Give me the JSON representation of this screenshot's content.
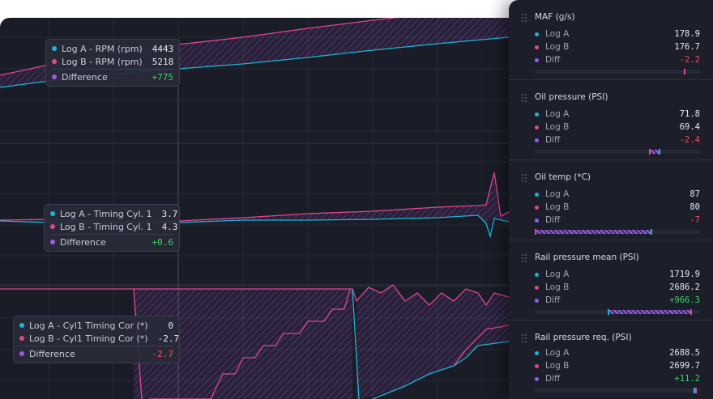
{
  "colors": {
    "log_a": "#1db4d6",
    "log_b": "#e2468e",
    "diff": "#9b5de5",
    "positive": "#3ecf6b",
    "negative": "#ef4e5b",
    "background": "#1a1c27",
    "panel": "#1c1e2a"
  },
  "tooltips": [
    {
      "rows": [
        {
          "label": "Log A - RPM (rpm)",
          "value": "4443"
        },
        {
          "label": "Log B - RPM (rpm)",
          "value": "5218"
        },
        {
          "label": "Difference",
          "value": "+775"
        }
      ]
    },
    {
      "rows": [
        {
          "label": "Log A - Timing Cyl. 1",
          "value": "3.7"
        },
        {
          "label": "Log B - Timing Cyl. 1",
          "value": "4.3"
        },
        {
          "label": "Difference",
          "value": "+0.6"
        }
      ]
    },
    {
      "rows": [
        {
          "label": "Log A - Cyl1 Timing Cor (*)",
          "value": "0"
        },
        {
          "label": "Log B - Cyl1 Timing Cor (*)",
          "value": "-2.7"
        },
        {
          "label": "Difference",
          "value": "-2.7"
        }
      ]
    }
  ],
  "panel": {
    "cards": [
      {
        "title": "MAF (g/s)",
        "a_label": "Log A",
        "a_value": "178.9",
        "b_label": "Log B",
        "b_value": "176.7",
        "diff_label": "Diff",
        "diff_value": "-2.2",
        "bar_a": 0.9,
        "bar_b": 0.9
      },
      {
        "title": "Oil pressure (PSI)",
        "a_label": "Log A",
        "a_value": "71.8",
        "b_label": "Log B",
        "b_value": "69.4",
        "diff_label": "Diff",
        "diff_value": "-2.4",
        "bar_a": 0.75,
        "bar_b": 0.69
      },
      {
        "title": "Oil temp (*C)",
        "a_label": "Log A",
        "a_value": "87",
        "b_label": "Log B",
        "b_value": "80",
        "diff_label": "Diff",
        "diff_value": "-7",
        "bar_a": 0.7,
        "bar_b": 0.0
      },
      {
        "title": "Rail pressure mean (PSI)",
        "a_label": "Log A",
        "a_value": "1719.9",
        "b_label": "Log B",
        "b_value": "2686.2",
        "diff_label": "Diff",
        "diff_value": "+966.3",
        "bar_a": 0.44,
        "bar_b": 0.94
      },
      {
        "title": "Rail pressure req. (PSI)",
        "a_label": "Log A",
        "a_value": "2688.5",
        "b_label": "Log B",
        "b_value": "2699.7",
        "diff_label": "Diff",
        "diff_value": "+11.2",
        "bar_a": 0.96,
        "bar_b": 0.97
      }
    ]
  }
}
